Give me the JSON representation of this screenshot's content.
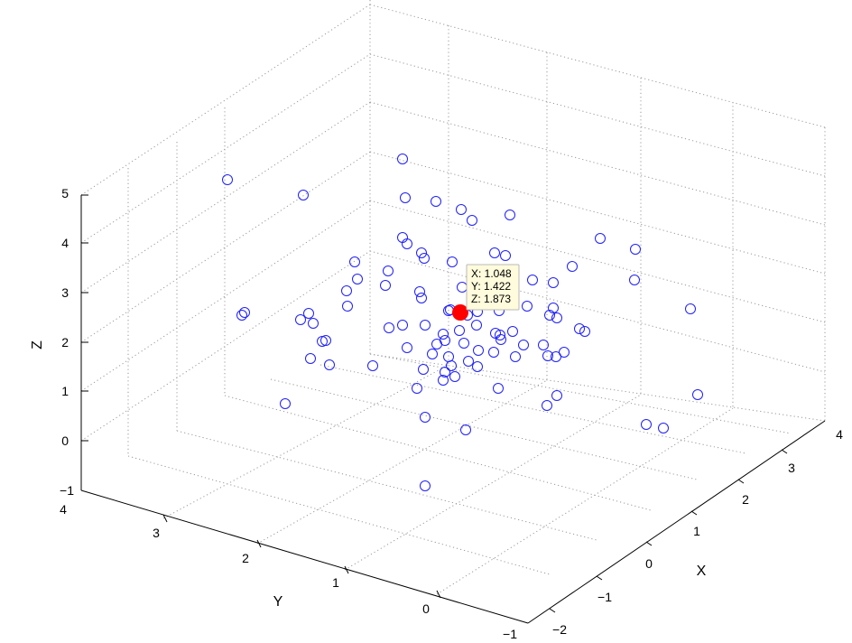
{
  "chart_data": {
    "type": "scatter",
    "dimensions": 3,
    "xlabel": "X",
    "ylabel": "Y",
    "zlabel": "Z",
    "xlim": [
      -2,
      4
    ],
    "ylim": [
      -1,
      4
    ],
    "zlim": [
      -1,
      5
    ],
    "x_ticks": [
      "−2",
      "−1",
      "0",
      "1",
      "2",
      "3",
      "4"
    ],
    "y_ticks": [
      "−1",
      "0",
      "1",
      "2",
      "3",
      "4"
    ],
    "z_ticks": [
      "−1",
      "0",
      "1",
      "2",
      "3",
      "4",
      "5"
    ],
    "grid": true,
    "marker": "circle",
    "marker_color": "#1f1fff",
    "points": [
      {
        "x": 1.0,
        "y": 1.5,
        "z": 3.5
      },
      {
        "x": 1.2,
        "y": 1.6,
        "z": 3.2
      },
      {
        "x": 0.8,
        "y": 1.9,
        "z": 2.6
      },
      {
        "x": 1.5,
        "y": 1.3,
        "z": 3.3
      },
      {
        "x": 0.6,
        "y": 1.1,
        "z": 2.1
      },
      {
        "x": 1.8,
        "y": 1.0,
        "z": 2.4
      },
      {
        "x": 0.5,
        "y": 2.2,
        "z": 2.8
      },
      {
        "x": 2.2,
        "y": 1.5,
        "z": 3.1
      },
      {
        "x": 1.1,
        "y": 0.8,
        "z": 1.5
      },
      {
        "x": 0.2,
        "y": 1.6,
        "z": 2.3
      },
      {
        "x": 1.7,
        "y": 2.1,
        "z": 3.6
      },
      {
        "x": 2.5,
        "y": 0.8,
        "z": 2.0
      },
      {
        "x": -0.5,
        "y": 2.8,
        "z": 3.9
      },
      {
        "x": 0.9,
        "y": 1.3,
        "z": 1.2
      },
      {
        "x": 1.4,
        "y": 0.4,
        "z": 0.8
      },
      {
        "x": 3.2,
        "y": 1.2,
        "z": 2.8
      },
      {
        "x": 0.3,
        "y": 0.9,
        "z": 1.0
      },
      {
        "x": 2.8,
        "y": 1.9,
        "z": 3.7
      },
      {
        "x": 1.9,
        "y": 2.6,
        "z": 4.2
      },
      {
        "x": -0.2,
        "y": 1.4,
        "z": 1.9
      },
      {
        "x": 1.3,
        "y": 1.8,
        "z": 2.7
      },
      {
        "x": 0.7,
        "y": 2.6,
        "z": 3.0
      },
      {
        "x": 2.0,
        "y": 0.6,
        "z": 1.4
      },
      {
        "x": 2.3,
        "y": 1.2,
        "z": 2.2
      },
      {
        "x": 1.6,
        "y": 1.7,
        "z": 4.4
      },
      {
        "x": 0.4,
        "y": 0.3,
        "z": -0.5
      },
      {
        "x": 3.6,
        "y": 0.5,
        "z": 1.2
      },
      {
        "x": 0.1,
        "y": 3.3,
        "z": 2.9
      },
      {
        "x": 2.6,
        "y": 2.3,
        "z": 3.2
      },
      {
        "x": 1.2,
        "y": 0.2,
        "z": 0.4
      },
      {
        "x": -0.7,
        "y": 2.0,
        "z": 0.6
      },
      {
        "x": 3.4,
        "y": 1.6,
        "z": 3.4
      },
      {
        "x": 0.9,
        "y": 2.1,
        "z": 3.7
      },
      {
        "x": 1.6,
        "y": 0.9,
        "z": 1.7
      },
      {
        "x": 2.1,
        "y": 0.3,
        "z": 0.5
      },
      {
        "x": 0.0,
        "y": 1.9,
        "z": 1.4
      },
      {
        "x": 1.0,
        "y": 2.8,
        "z": 4.1
      }
    ],
    "datatip": {
      "x": 1.048,
      "y": 1.422,
      "z": 1.873,
      "lines": [
        "X: 1.048",
        "Y: 1.422",
        "Z: 1.873"
      ],
      "marker_color": "#ff0000"
    }
  },
  "screen_points": [
    [
      252,
      199
    ],
    [
      336,
      216
    ],
    [
      446,
      176
    ],
    [
      449,
      219
    ],
    [
      483,
      223
    ],
    [
      511,
      232
    ],
    [
      523,
      244
    ],
    [
      565,
      238
    ],
    [
      665,
      264
    ],
    [
      704,
      276
    ],
    [
      446,
      263
    ],
    [
      451,
      270
    ],
    [
      467,
      280
    ],
    [
      470,
      286
    ],
    [
      501,
      290
    ],
    [
      548,
      280
    ],
    [
      560,
      283
    ],
    [
      634,
      295
    ],
    [
      703,
      310
    ],
    [
      393,
      290
    ],
    [
      430,
      300
    ],
    [
      396,
      309
    ],
    [
      427,
      316
    ],
    [
      384,
      322
    ],
    [
      465,
      323
    ],
    [
      467,
      330
    ],
    [
      512,
      318
    ],
    [
      590,
      310
    ],
    [
      613,
      313
    ],
    [
      385,
      339
    ],
    [
      342,
      347
    ],
    [
      271,
      346
    ],
    [
      268,
      349
    ],
    [
      333,
      354
    ],
    [
      347,
      358
    ],
    [
      361,
      377
    ],
    [
      357,
      378
    ],
    [
      431,
      363
    ],
    [
      446,
      360
    ],
    [
      471,
      360
    ],
    [
      497,
      344
    ],
    [
      499,
      343
    ],
    [
      529,
      345
    ],
    [
      518,
      349
    ],
    [
      548,
      337
    ],
    [
      553,
      344
    ],
    [
      584,
      339
    ],
    [
      609,
      349
    ],
    [
      613,
      341
    ],
    [
      617,
      352
    ],
    [
      642,
      364
    ],
    [
      648,
      367
    ],
    [
      765,
      342
    ],
    [
      509,
      366
    ],
    [
      528,
      360
    ],
    [
      549,
      369
    ],
    [
      568,
      367
    ],
    [
      555,
      376
    ],
    [
      554,
      371
    ],
    [
      580,
      382
    ],
    [
      602,
      382
    ],
    [
      607,
      394
    ],
    [
      616,
      395
    ],
    [
      625,
      390
    ],
    [
      451,
      385
    ],
    [
      479,
      392
    ],
    [
      493,
      377
    ],
    [
      491,
      370
    ],
    [
      514,
      380
    ],
    [
      497,
      395
    ],
    [
      484,
      381
    ],
    [
      530,
      388
    ],
    [
      547,
      390
    ],
    [
      571,
      395
    ],
    [
      344,
      397
    ],
    [
      365,
      404
    ],
    [
      413,
      405
    ],
    [
      469,
      409
    ],
    [
      500,
      405
    ],
    [
      493,
      412
    ],
    [
      529,
      406
    ],
    [
      519,
      400
    ],
    [
      491,
      421
    ],
    [
      504,
      417
    ],
    [
      462,
      430
    ],
    [
      552,
      430
    ],
    [
      617,
      438
    ],
    [
      606,
      449
    ],
    [
      773,
      437
    ],
    [
      316,
      447
    ],
    [
      471,
      462
    ],
    [
      716,
      470
    ],
    [
      735,
      474
    ],
    [
      516,
      476
    ],
    [
      471,
      538
    ]
  ],
  "tip_screen": {
    "dot": [
      510,
      346
    ],
    "box": [
      517,
      293
    ]
  }
}
